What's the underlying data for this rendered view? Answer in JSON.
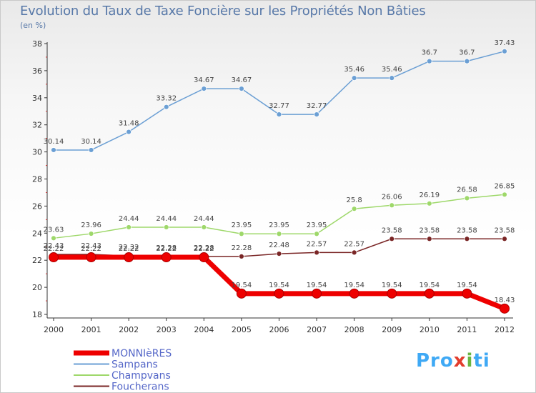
{
  "header": {
    "title": "Evolution du Taux de Taxe Foncière sur les Propriétés Non Bâties",
    "subtitle": "(en %)"
  },
  "brand": {
    "logo_text": "Proxiti"
  },
  "chart_data": {
    "type": "line",
    "title": "Evolution du Taux de Taxe Foncière sur les Propriétés Non Bâties",
    "subtitle": "(en %)",
    "x": [
      "2000",
      "2001",
      "2002",
      "2003",
      "2004",
      "2005",
      "2006",
      "2007",
      "2008",
      "2009",
      "2010",
      "2011",
      "2012"
    ],
    "ylim": [
      18,
      38
    ],
    "yticks": [
      18,
      20,
      22,
      24,
      26,
      28,
      30,
      32,
      34,
      36,
      38
    ],
    "grid": false,
    "legend_position": "bottom-left",
    "series": [
      {
        "name": "MONNIèRES",
        "color": "#ee0000",
        "values": [
          22.22,
          22.22,
          22.22,
          22.22,
          22.22,
          19.54,
          19.54,
          19.54,
          19.54,
          19.54,
          19.54,
          19.54,
          18.43
        ],
        "labels": [
          "22.22",
          "22.22",
          "22.22",
          "22.22",
          "22.22",
          "19.54",
          "19.54",
          "19.54",
          "19.54",
          "19.54",
          "19.54",
          "19.54",
          "18.43"
        ]
      },
      {
        "name": "Sampans",
        "color": "#6b9fd4",
        "values": [
          30.14,
          30.14,
          31.48,
          33.32,
          34.67,
          34.67,
          32.77,
          32.77,
          35.46,
          35.46,
          36.7,
          36.7,
          37.43
        ],
        "labels": [
          "30.14",
          "30.14",
          "31.48",
          "33.32",
          "34.67",
          "34.67",
          "32.77",
          "32.77",
          "35.46",
          "35.46",
          "36.7",
          "36.7",
          "37.43"
        ]
      },
      {
        "name": "Champvans",
        "color": "#9ed86a",
        "values": [
          23.63,
          23.96,
          24.44,
          24.44,
          24.44,
          23.95,
          23.95,
          23.95,
          25.8,
          26.06,
          26.19,
          26.58,
          26.85
        ],
        "labels": [
          "23.63",
          "23.96",
          "24.44",
          "24.44",
          "24.44",
          "23.95",
          "23.95",
          "23.95",
          "25.8",
          "26.06",
          "26.19",
          "26.58",
          "26.85"
        ]
      },
      {
        "name": "Foucherans",
        "color": "#7a2626",
        "values": [
          22.43,
          22.43,
          22.32,
          22.28,
          22.28,
          22.28,
          22.48,
          22.57,
          22.57,
          23.58,
          23.58,
          23.58,
          23.58
        ],
        "labels": [
          "22.43",
          "22.43",
          "22.32",
          "22.28",
          "22.28",
          "22.28",
          "22.48",
          "22.57",
          "22.57",
          "23.58",
          "23.58",
          "23.58",
          "23.58"
        ]
      }
    ]
  }
}
